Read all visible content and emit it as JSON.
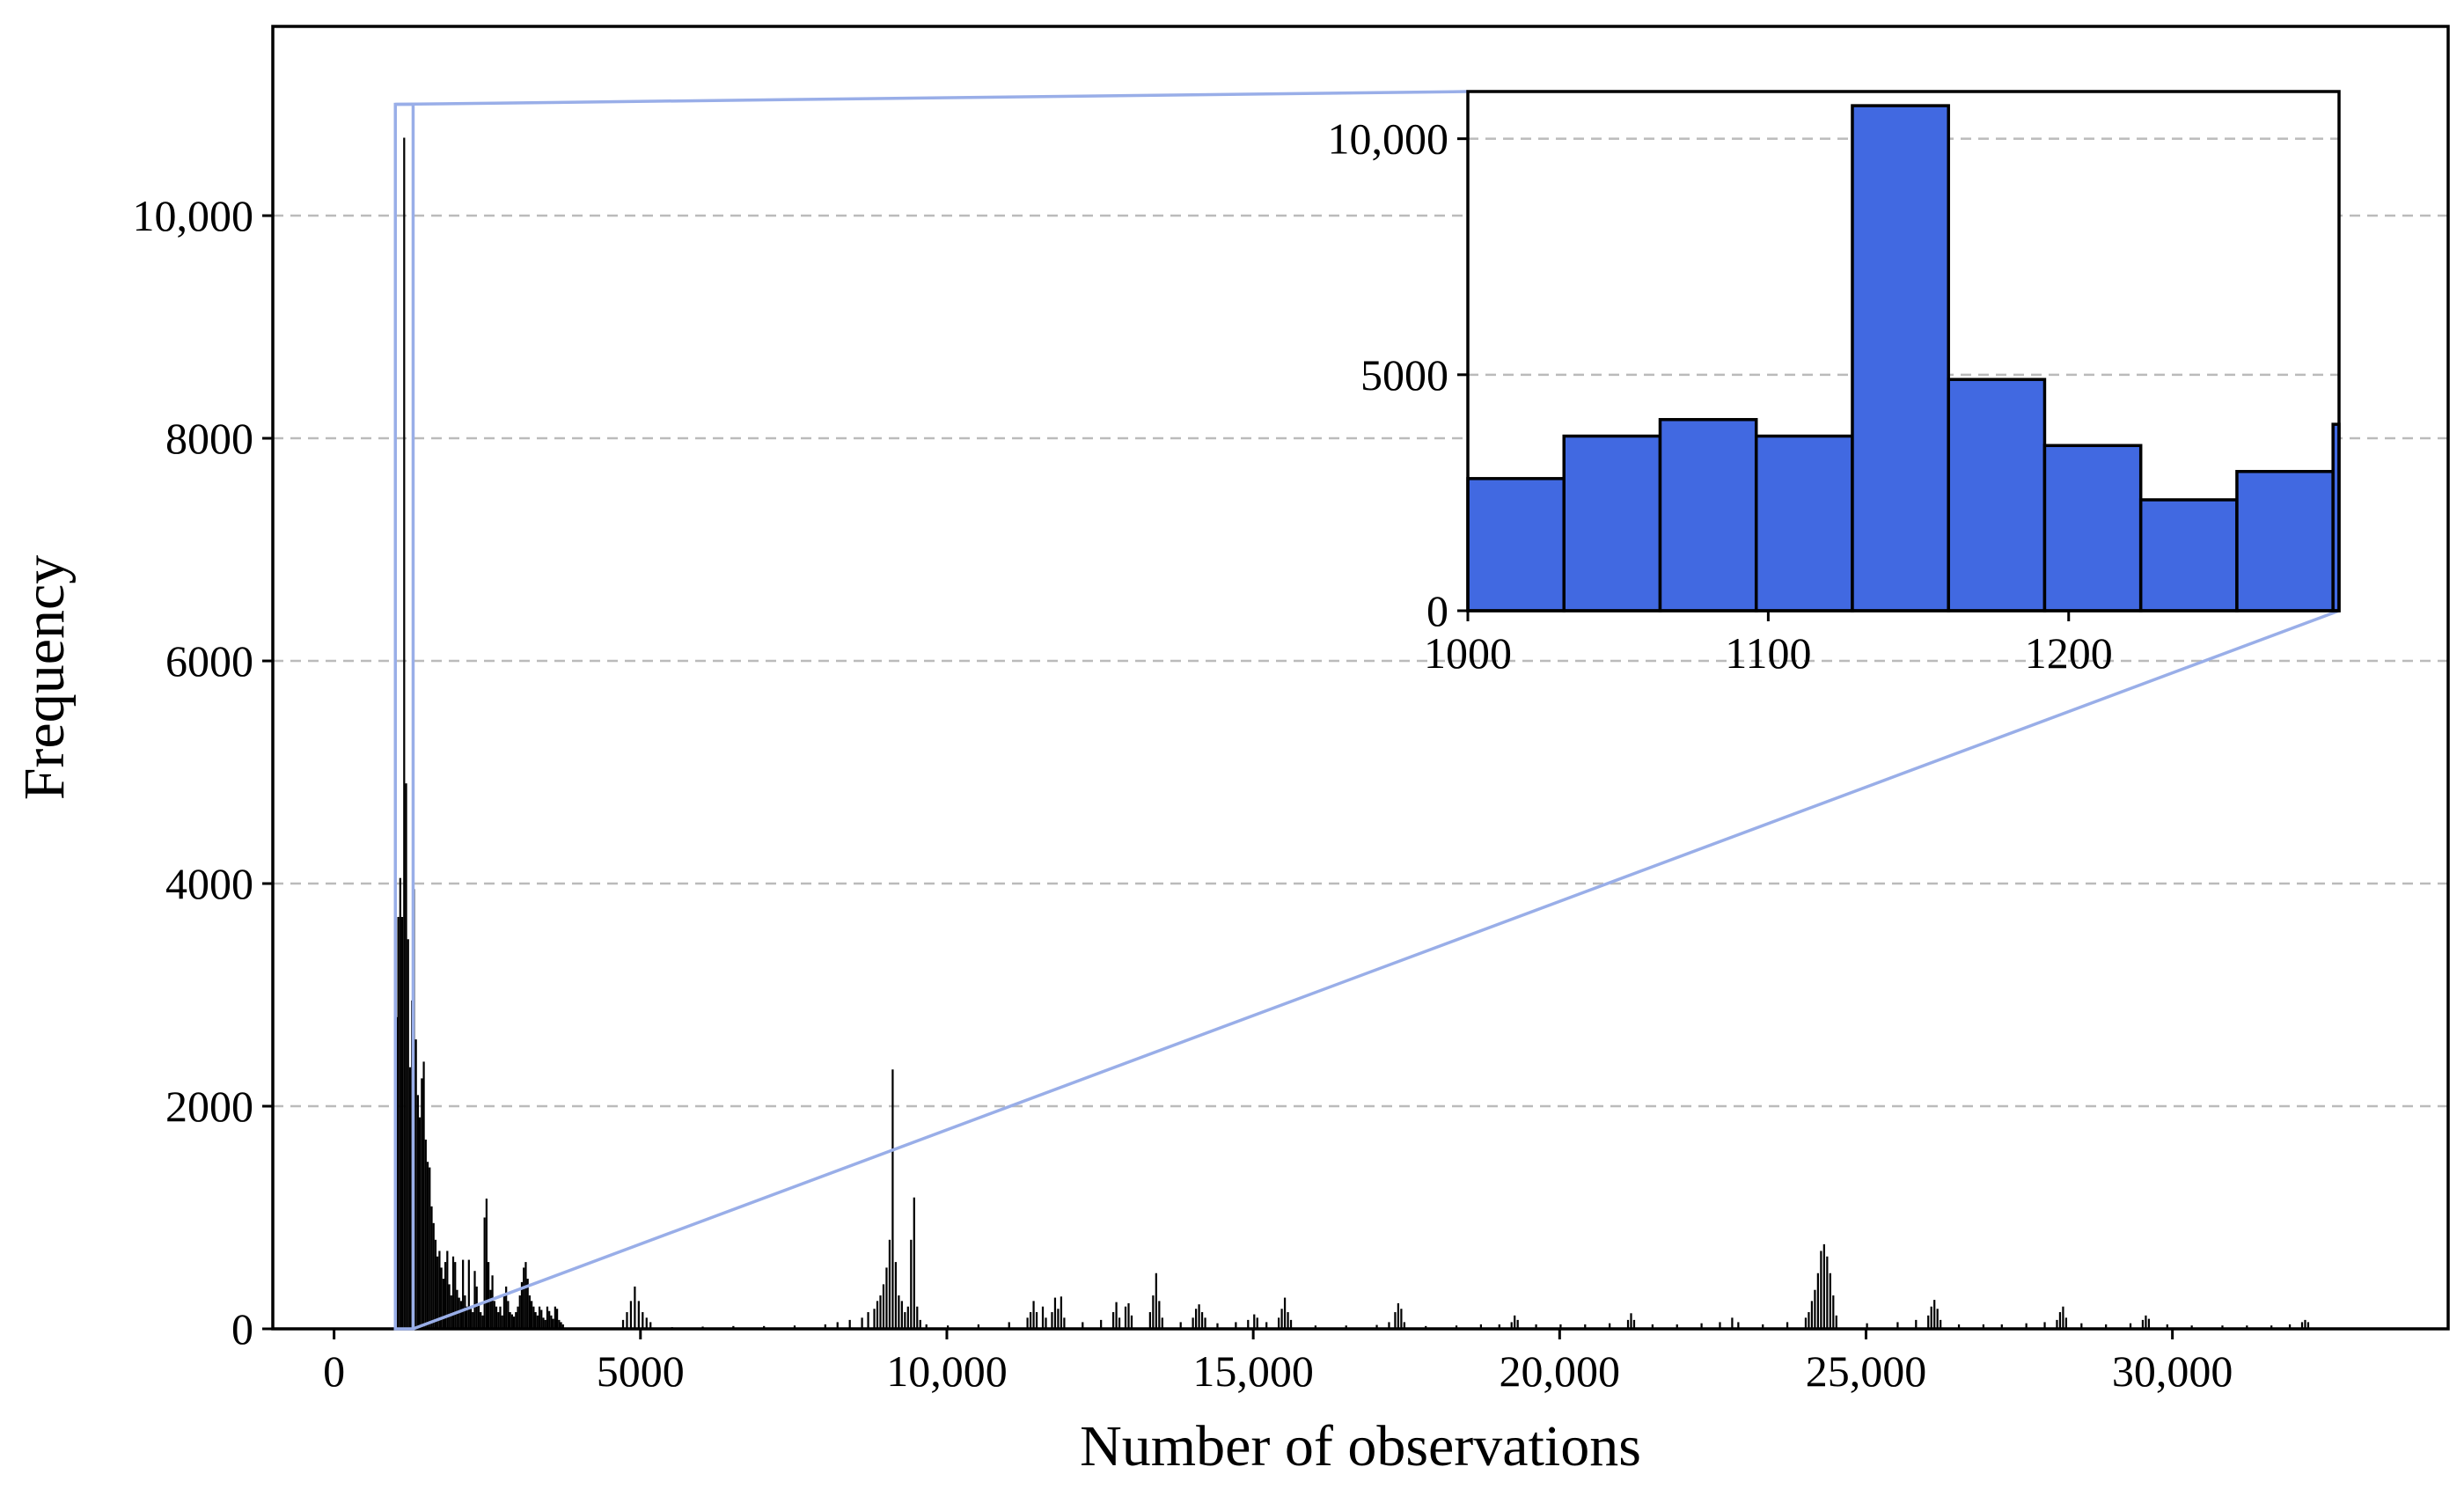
{
  "colors": {
    "main_bar": "#000000",
    "inset_bar": "#4169e1",
    "inset_bar_edge": "#000000",
    "zoom_indicator": "#99aee8",
    "grid": "#bbbbbb"
  },
  "chart_data": [
    {
      "type": "bar",
      "title": "",
      "xlabel": "Number of observations",
      "ylabel": "Frequency",
      "xlim": [
        -1000,
        34500
      ],
      "ylim": [
        0,
        11700
      ],
      "grid": "horizontal dashed",
      "x_ticks": [
        0,
        5000,
        10000,
        15000,
        20000,
        25000,
        30000
      ],
      "x_tick_labels": [
        "0",
        "5000",
        "10,000",
        "15,000",
        "20,000",
        "25,000",
        "30,000"
      ],
      "y_ticks": [
        0,
        2000,
        4000,
        6000,
        8000,
        10000
      ],
      "y_tick_labels": [
        "0",
        "2000",
        "4000",
        "6000",
        "8000",
        "10,000"
      ],
      "bin_width": 32,
      "bars": [
        [
          1000,
          2800
        ],
        [
          1032,
          3700
        ],
        [
          1064,
          4050
        ],
        [
          1096,
          3700
        ],
        [
          1128,
          10700
        ],
        [
          1160,
          4900
        ],
        [
          1192,
          3500
        ],
        [
          1224,
          2350
        ],
        [
          1256,
          2950
        ],
        [
          1288,
          3950
        ],
        [
          1320,
          2600
        ],
        [
          1352,
          2100
        ],
        [
          1384,
          1900
        ],
        [
          1416,
          2250
        ],
        [
          1448,
          2400
        ],
        [
          1480,
          1700
        ],
        [
          1512,
          1500
        ],
        [
          1544,
          1450
        ],
        [
          1576,
          1100
        ],
        [
          1608,
          950
        ],
        [
          1640,
          800
        ],
        [
          1672,
          650
        ],
        [
          1704,
          700
        ],
        [
          1736,
          550
        ],
        [
          1768,
          450
        ],
        [
          1800,
          600
        ],
        [
          1832,
          700
        ],
        [
          1864,
          400
        ],
        [
          1896,
          300
        ],
        [
          1928,
          650
        ],
        [
          1960,
          600
        ],
        [
          1992,
          350
        ],
        [
          2024,
          280
        ],
        [
          2056,
          250
        ],
        [
          2088,
          620
        ],
        [
          2120,
          300
        ],
        [
          2152,
          200
        ],
        [
          2184,
          620
        ],
        [
          2216,
          180
        ],
        [
          2248,
          150
        ],
        [
          2280,
          520
        ],
        [
          2312,
          380
        ],
        [
          2344,
          220
        ],
        [
          2376,
          150
        ],
        [
          2408,
          120
        ],
        [
          2440,
          1000
        ],
        [
          2472,
          1170
        ],
        [
          2504,
          600
        ],
        [
          2536,
          350
        ],
        [
          2568,
          480
        ],
        [
          2600,
          250
        ],
        [
          2632,
          200
        ],
        [
          2664,
          150
        ],
        [
          2696,
          200
        ],
        [
          2728,
          120
        ],
        [
          2760,
          300
        ],
        [
          2792,
          380
        ],
        [
          2824,
          250
        ],
        [
          2856,
          150
        ],
        [
          2888,
          130
        ],
        [
          2920,
          110
        ],
        [
          2952,
          150
        ],
        [
          2984,
          200
        ],
        [
          3016,
          300
        ],
        [
          3048,
          420
        ],
        [
          3080,
          550
        ],
        [
          3112,
          600
        ],
        [
          3144,
          450
        ],
        [
          3176,
          300
        ],
        [
          3208,
          250
        ],
        [
          3240,
          200
        ],
        [
          3272,
          150
        ],
        [
          3304,
          120
        ],
        [
          3336,
          200
        ],
        [
          3368,
          170
        ],
        [
          3400,
          100
        ],
        [
          3432,
          80
        ],
        [
          3464,
          200
        ],
        [
          3496,
          160
        ],
        [
          3528,
          120
        ],
        [
          3560,
          90
        ],
        [
          3592,
          200
        ],
        [
          3624,
          180
        ],
        [
          3656,
          80
        ],
        [
          3688,
          60
        ],
        [
          3720,
          40
        ],
        [
          4700,
          80
        ],
        [
          4764,
          150
        ],
        [
          4828,
          250
        ],
        [
          4892,
          380
        ],
        [
          4956,
          250
        ],
        [
          5020,
          150
        ],
        [
          5084,
          100
        ],
        [
          5148,
          60
        ],
        [
          5500,
          15
        ],
        [
          6000,
          20
        ],
        [
          6500,
          25
        ],
        [
          7000,
          25
        ],
        [
          7500,
          30
        ],
        [
          8000,
          40
        ],
        [
          8200,
          60
        ],
        [
          8400,
          80
        ],
        [
          8600,
          100
        ],
        [
          8700,
          150
        ],
        [
          8800,
          180
        ],
        [
          8850,
          250
        ],
        [
          8900,
          300
        ],
        [
          8950,
          400
        ],
        [
          9000,
          550
        ],
        [
          9050,
          800
        ],
        [
          9100,
          2330
        ],
        [
          9150,
          600
        ],
        [
          9200,
          300
        ],
        [
          9250,
          250
        ],
        [
          9300,
          150
        ],
        [
          9350,
          200
        ],
        [
          9400,
          800
        ],
        [
          9450,
          1180
        ],
        [
          9500,
          200
        ],
        [
          9550,
          80
        ],
        [
          9650,
          40
        ],
        [
          10000,
          30
        ],
        [
          10500,
          40
        ],
        [
          11000,
          60
        ],
        [
          11300,
          100
        ],
        [
          11350,
          150
        ],
        [
          11400,
          250
        ],
        [
          11450,
          150
        ],
        [
          11550,
          200
        ],
        [
          11600,
          100
        ],
        [
          11700,
          150
        ],
        [
          11750,
          280
        ],
        [
          11800,
          180
        ],
        [
          11850,
          290
        ],
        [
          11900,
          100
        ],
        [
          12200,
          60
        ],
        [
          12500,
          80
        ],
        [
          12700,
          150
        ],
        [
          12750,
          240
        ],
        [
          12800,
          100
        ],
        [
          12900,
          200
        ],
        [
          12950,
          230
        ],
        [
          13000,
          120
        ],
        [
          13300,
          150
        ],
        [
          13350,
          300
        ],
        [
          13400,
          500
        ],
        [
          13450,
          250
        ],
        [
          13500,
          100
        ],
        [
          13800,
          60
        ],
        [
          14000,
          100
        ],
        [
          14050,
          180
        ],
        [
          14100,
          220
        ],
        [
          14150,
          150
        ],
        [
          14200,
          100
        ],
        [
          14400,
          50
        ],
        [
          14700,
          60
        ],
        [
          14900,
          80
        ],
        [
          15000,
          130
        ],
        [
          15050,
          100
        ],
        [
          15200,
          60
        ],
        [
          15400,
          100
        ],
        [
          15450,
          180
        ],
        [
          15500,
          280
        ],
        [
          15550,
          150
        ],
        [
          15600,
          80
        ],
        [
          16000,
          30
        ],
        [
          16500,
          30
        ],
        [
          17000,
          35
        ],
        [
          17200,
          60
        ],
        [
          17300,
          150
        ],
        [
          17350,
          230
        ],
        [
          17400,
          180
        ],
        [
          17450,
          60
        ],
        [
          17800,
          25
        ],
        [
          18300,
          30
        ],
        [
          18700,
          40
        ],
        [
          19000,
          40
        ],
        [
          19200,
          60
        ],
        [
          19250,
          120
        ],
        [
          19300,
          80
        ],
        [
          19600,
          40
        ],
        [
          20000,
          40
        ],
        [
          20400,
          40
        ],
        [
          20800,
          50
        ],
        [
          21100,
          80
        ],
        [
          21150,
          140
        ],
        [
          21200,
          80
        ],
        [
          21500,
          40
        ],
        [
          21900,
          40
        ],
        [
          22300,
          50
        ],
        [
          22600,
          60
        ],
        [
          22800,
          100
        ],
        [
          22900,
          60
        ],
        [
          23300,
          40
        ],
        [
          23700,
          60
        ],
        [
          24000,
          100
        ],
        [
          24050,
          150
        ],
        [
          24100,
          250
        ],
        [
          24150,
          350
        ],
        [
          24200,
          500
        ],
        [
          24250,
          700
        ],
        [
          24300,
          760
        ],
        [
          24350,
          650
        ],
        [
          24400,
          500
        ],
        [
          24450,
          300
        ],
        [
          24500,
          120
        ],
        [
          25000,
          50
        ],
        [
          25500,
          60
        ],
        [
          25800,
          80
        ],
        [
          26000,
          120
        ],
        [
          26050,
          200
        ],
        [
          26100,
          260
        ],
        [
          26150,
          180
        ],
        [
          26200,
          80
        ],
        [
          26500,
          40
        ],
        [
          26900,
          40
        ],
        [
          27200,
          40
        ],
        [
          27600,
          50
        ],
        [
          27900,
          60
        ],
        [
          28100,
          80
        ],
        [
          28150,
          150
        ],
        [
          28200,
          200
        ],
        [
          28250,
          100
        ],
        [
          28500,
          50
        ],
        [
          28900,
          40
        ],
        [
          29300,
          50
        ],
        [
          29500,
          80
        ],
        [
          29550,
          120
        ],
        [
          29600,
          90
        ],
        [
          29900,
          40
        ],
        [
          30300,
          30
        ],
        [
          30800,
          30
        ],
        [
          31200,
          30
        ],
        [
          31600,
          30
        ],
        [
          31900,
          40
        ],
        [
          32100,
          60
        ],
        [
          32150,
          80
        ],
        [
          32200,
          60
        ]
      ]
    },
    {
      "type": "bar",
      "title": "",
      "xlabel": "",
      "ylabel": "",
      "xlim": [
        1000,
        1290
      ],
      "ylim": [
        0,
        11000
      ],
      "grid": "horizontal dashed",
      "x_ticks": [
        1000,
        1100,
        1200
      ],
      "x_tick_labels": [
        "1000",
        "1100",
        "1200"
      ],
      "y_ticks": [
        0,
        5000,
        10000
      ],
      "y_tick_labels": [
        "0",
        "5000",
        "10,000"
      ],
      "bin_width": 32,
      "bars": [
        [
          1000,
          2800
        ],
        [
          1032,
          3700
        ],
        [
          1064,
          4050
        ],
        [
          1096,
          3700
        ],
        [
          1128,
          10700
        ],
        [
          1160,
          4900
        ],
        [
          1192,
          3500
        ],
        [
          1224,
          2350
        ],
        [
          1256,
          2950
        ],
        [
          1288,
          3950
        ]
      ]
    }
  ]
}
